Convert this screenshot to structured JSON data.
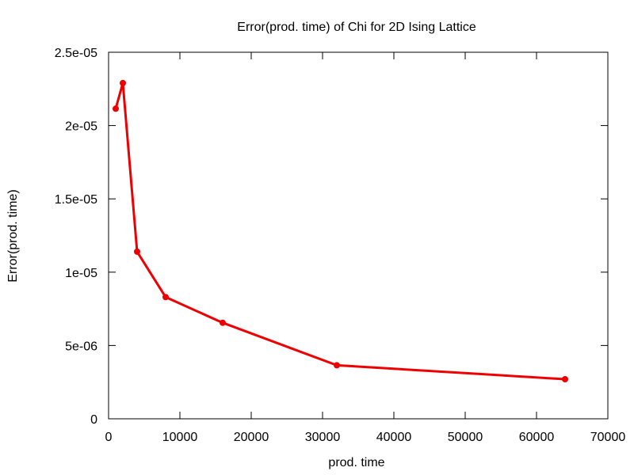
{
  "chart_data": {
    "type": "line",
    "title": "Error(prod. time) of Chi for 2D Ising Lattice",
    "xlabel": "prod. time",
    "ylabel": "Error(prod. time)",
    "xlim": [
      0,
      70000
    ],
    "ylim": [
      0,
      2.5e-05
    ],
    "x_ticks": [
      {
        "value": 0,
        "label": "0"
      },
      {
        "value": 10000,
        "label": "10000"
      },
      {
        "value": 20000,
        "label": "20000"
      },
      {
        "value": 30000,
        "label": "30000"
      },
      {
        "value": 40000,
        "label": "40000"
      },
      {
        "value": 50000,
        "label": "50000"
      },
      {
        "value": 60000,
        "label": "60000"
      },
      {
        "value": 70000,
        "label": "70000"
      }
    ],
    "y_ticks": [
      {
        "value": 0,
        "label": "0"
      },
      {
        "value": 5e-06,
        "label": "5e-06"
      },
      {
        "value": 1e-05,
        "label": "1e-05"
      },
      {
        "value": 1.5e-05,
        "label": "1.5e-05"
      },
      {
        "value": 2e-05,
        "label": "2e-05"
      },
      {
        "value": 2.5e-05,
        "label": "2.5e-05"
      }
    ],
    "grid": false,
    "series": [
      {
        "color": "#ee0000",
        "x": [
          1000,
          2000,
          4000,
          8000,
          16000,
          32000,
          64000
        ],
        "y": [
          2.115e-05,
          2.29e-05,
          1.14e-05,
          8.3e-06,
          6.55e-06,
          3.65e-06,
          2.7e-06
        ]
      }
    ]
  }
}
